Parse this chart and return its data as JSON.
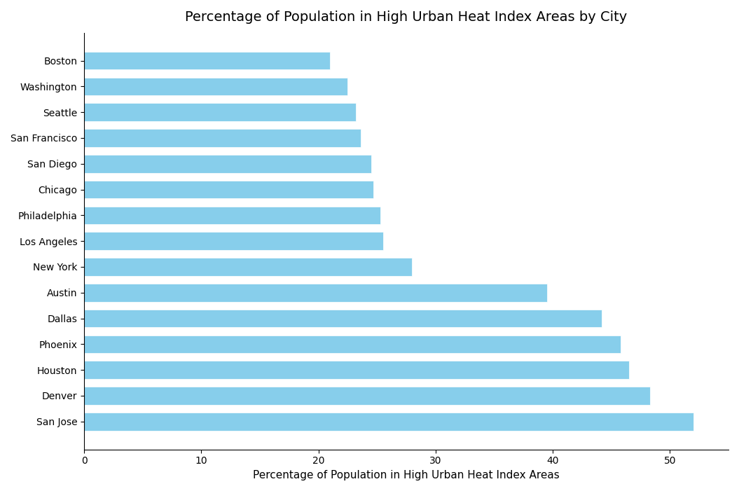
{
  "title": "Percentage of Population in High Urban Heat Index Areas by City",
  "xlabel": "Percentage of Population in High Urban Heat Index Areas",
  "cities": [
    "San Jose",
    "Denver",
    "Houston",
    "Phoenix",
    "Dallas",
    "Austin",
    "New York",
    "Los Angeles",
    "Philadelphia",
    "Chicago",
    "San Diego",
    "San Francisco",
    "Seattle",
    "Washington",
    "Boston"
  ],
  "values": [
    52.0,
    48.3,
    46.5,
    45.8,
    44.2,
    39.5,
    28.0,
    25.5,
    25.3,
    24.7,
    24.5,
    23.6,
    23.2,
    22.5,
    21.0
  ],
  "bar_color": "#87CEEB",
  "background_color": "#ffffff",
  "xlim": [
    0,
    55
  ],
  "figsize": [
    10.55,
    7.01
  ],
  "dpi": 100,
  "title_fontsize": 14,
  "axis_label_fontsize": 11,
  "tick_fontsize": 10
}
